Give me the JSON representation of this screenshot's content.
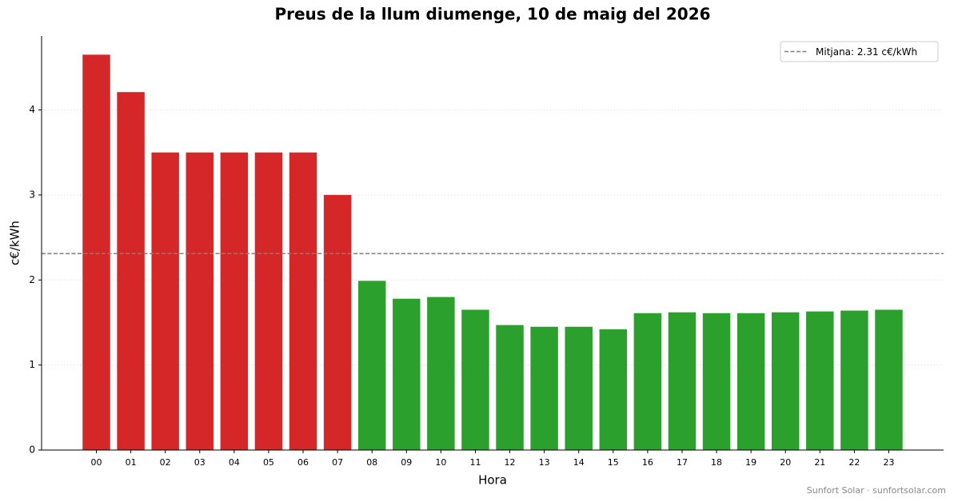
{
  "chart_data": {
    "type": "bar",
    "title": "Preus de la llum diumenge, 10 de maig del 2026",
    "xlabel": "Hora",
    "ylabel": "c€/kWh",
    "categories": [
      "00",
      "01",
      "02",
      "03",
      "04",
      "05",
      "06",
      "07",
      "08",
      "09",
      "10",
      "11",
      "12",
      "13",
      "14",
      "15",
      "16",
      "17",
      "18",
      "19",
      "20",
      "21",
      "22",
      "23"
    ],
    "values": [
      4.65,
      4.21,
      3.5,
      3.5,
      3.5,
      3.5,
      3.5,
      3.0,
      1.99,
      1.78,
      1.8,
      1.65,
      1.47,
      1.45,
      1.45,
      1.42,
      1.61,
      1.62,
      1.61,
      1.61,
      1.62,
      1.63,
      1.64,
      1.65
    ],
    "colors": [
      "#d62728",
      "#d62728",
      "#d62728",
      "#d62728",
      "#d62728",
      "#d62728",
      "#d62728",
      "#d62728",
      "#2ca02c",
      "#2ca02c",
      "#2ca02c",
      "#2ca02c",
      "#2ca02c",
      "#2ca02c",
      "#2ca02c",
      "#2ca02c",
      "#2ca02c",
      "#2ca02c",
      "#2ca02c",
      "#2ca02c",
      "#2ca02c",
      "#2ca02c",
      "#2ca02c",
      "#2ca02c"
    ],
    "mean": 2.31,
    "mean_label": "Mitjana: 2.31 c€/kWh",
    "mean_color": "#808080",
    "legend": "upper right",
    "ylim": [
      0,
      4.87
    ],
    "yticks": [
      0,
      1,
      2,
      3,
      4
    ],
    "grid": true,
    "footer": "Sunfort Solar · sunfortsolar.com"
  }
}
